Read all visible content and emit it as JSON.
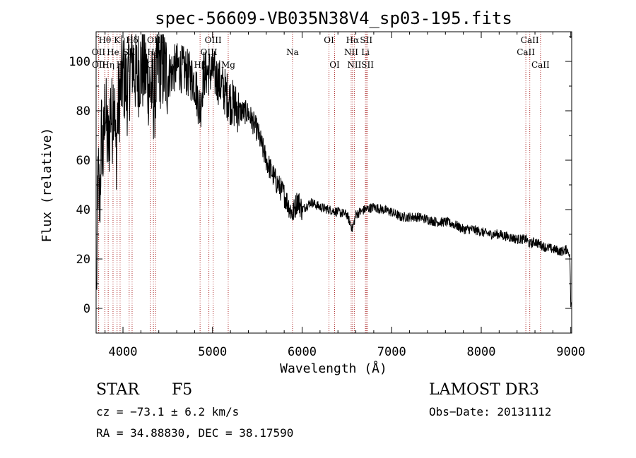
{
  "chart_data": {
    "type": "line",
    "title": "spec-56609-VB035N38V4_sp03-195.fits",
    "xlabel": "Wavelength (Å)",
    "ylabel": "Flux (relative)",
    "xlim": [
      3700,
      9010
    ],
    "ylim": [
      -10,
      112
    ],
    "xticks": [
      4000,
      5000,
      6000,
      7000,
      8000,
      9000
    ],
    "yticks": [
      0,
      20,
      40,
      60,
      80,
      100
    ],
    "grid": false,
    "spectrum": {
      "wavelength": [
        3705,
        3720,
        3740,
        3760,
        3780,
        3800,
        3820,
        3840,
        3860,
        3880,
        3900,
        3920,
        3940,
        3960,
        3980,
        4000,
        4050,
        4100,
        4150,
        4200,
        4250,
        4300,
        4350,
        4400,
        4500,
        4600,
        4700,
        4800,
        4861,
        4900,
        5000,
        5100,
        5200,
        5300,
        5400,
        5500,
        5600,
        5700,
        5800,
        5893,
        5950,
        6000,
        6100,
        6200,
        6300,
        6400,
        6500,
        6563,
        6600,
        6700,
        6800,
        6900,
        7000,
        7100,
        7200,
        7300,
        7400,
        7500,
        7600,
        7700,
        7800,
        7900,
        8000,
        8100,
        8200,
        8300,
        8400,
        8500,
        8542,
        8600,
        8700,
        8800,
        8900,
        8960,
        8990,
        9000,
        9005
      ],
      "flux": [
        5,
        55,
        40,
        72,
        60,
        85,
        70,
        65,
        82,
        75,
        92,
        60,
        78,
        85,
        90,
        95,
        88,
        102,
        94,
        98,
        96,
        90,
        85,
        100,
        94,
        98,
        96,
        92,
        80,
        95,
        96,
        90,
        84,
        80,
        79,
        72,
        60,
        52,
        46,
        38,
        44,
        40,
        43,
        41,
        40,
        39,
        38,
        32,
        38,
        40,
        41,
        40,
        39,
        37,
        37,
        37,
        36,
        35,
        35,
        34,
        32,
        32,
        31,
        30,
        30,
        29,
        28,
        28,
        26,
        27,
        25,
        24,
        23,
        24,
        21,
        0,
        3
      ]
    },
    "spectral_lines": [
      {
        "name": "Hθ",
        "wavelength": 3798,
        "row": 0
      },
      {
        "name": "OII",
        "wavelength": 3727,
        "row": 1
      },
      {
        "name": "OII",
        "wavelength": 3729,
        "row": 2
      },
      {
        "name": "Hη",
        "wavelength": 3835,
        "row": 2
      },
      {
        "name": "He",
        "wavelength": 3889,
        "row": 1
      },
      {
        "name": "K",
        "wavelength": 3934,
        "row": 0
      },
      {
        "name": "H",
        "wavelength": 3968,
        "row": 2
      },
      {
        "name": "Hδ",
        "wavelength": 4102,
        "row": 0
      },
      {
        "name": "SII",
        "wavelength": 4069,
        "row": 1
      },
      {
        "name": "OIII",
        "wavelength": 4363,
        "row": 0
      },
      {
        "name": "Hγ",
        "wavelength": 4340,
        "row": 1
      },
      {
        "name": "G",
        "wavelength": 4304,
        "row": 2
      },
      {
        "name": "OIII",
        "wavelength": 5007,
        "row": 0
      },
      {
        "name": "OIII",
        "wavelength": 4959,
        "row": 1
      },
      {
        "name": "Hβ",
        "wavelength": 4861,
        "row": 2
      },
      {
        "name": "Mg",
        "wavelength": 5175,
        "row": 2
      },
      {
        "name": "Na",
        "wavelength": 5893,
        "row": 1
      },
      {
        "name": "OI",
        "wavelength": 6300,
        "row": 0
      },
      {
        "name": "OI",
        "wavelength": 6363,
        "row": 2
      },
      {
        "name": "Hα",
        "wavelength": 6563,
        "row": 0
      },
      {
        "name": "NII",
        "wavelength": 6548,
        "row": 1
      },
      {
        "name": "NII",
        "wavelength": 6583,
        "row": 2
      },
      {
        "name": "SII",
        "wavelength": 6716,
        "row": 0
      },
      {
        "name": "Li",
        "wavelength": 6707,
        "row": 1
      },
      {
        "name": "SII",
        "wavelength": 6731,
        "row": 2
      },
      {
        "name": "CaII",
        "wavelength": 8542,
        "row": 0
      },
      {
        "name": "CaII",
        "wavelength": 8498,
        "row": 1
      },
      {
        "name": "CaII",
        "wavelength": 8662,
        "row": 2
      }
    ]
  },
  "info": {
    "object_class": "STAR",
    "subclass": "F5",
    "survey": "LAMOST DR3",
    "cz": "cz = −73.1 ± 6.2 km/s",
    "obs_date": "Obs−Date: 20131112",
    "coords": "RA =  34.88830, DEC =  38.17590"
  }
}
